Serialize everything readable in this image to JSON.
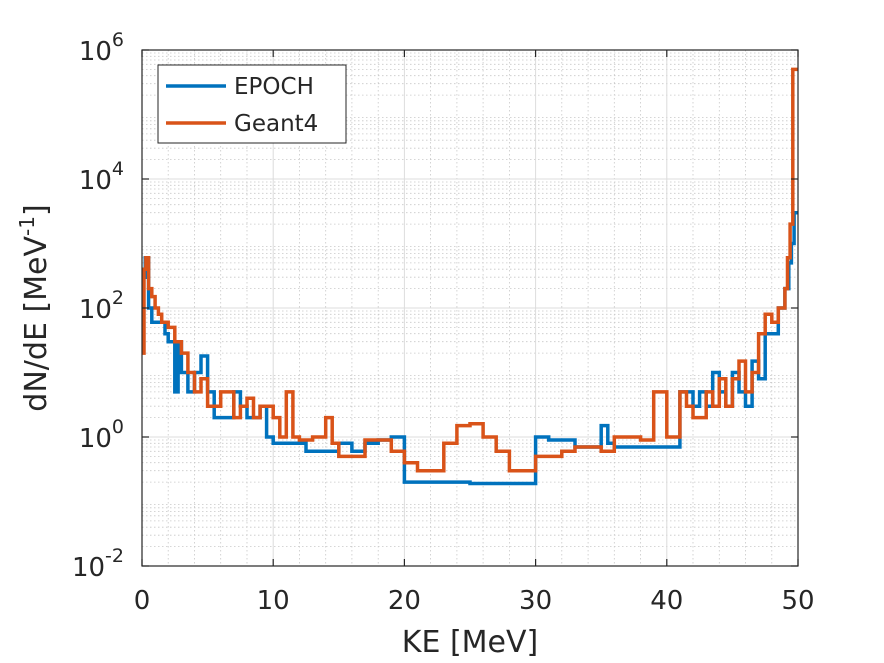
{
  "chart_data": {
    "type": "line",
    "step": true,
    "xlabel": "KE [MeV]",
    "ylabel": "dN/dE [MeV",
    "ylabel_sup": "-1",
    "ylabel_suffix": "]",
    "xlim": [
      0,
      50
    ],
    "ylim": [
      0.01,
      1000000
    ],
    "yscale": "log",
    "grid": true,
    "minor_grid": true,
    "legend_position": "top-left",
    "x_ticks": [
      {
        "value": 0,
        "label": "0"
      },
      {
        "value": 10,
        "label": "10"
      },
      {
        "value": 20,
        "label": "20"
      },
      {
        "value": 30,
        "label": "30"
      },
      {
        "value": 40,
        "label": "40"
      },
      {
        "value": 50,
        "label": "50"
      }
    ],
    "y_ticks": [
      {
        "value": 0.01,
        "base": "10",
        "exp": "-2"
      },
      {
        "value": 1,
        "base": "10",
        "exp": "0"
      },
      {
        "value": 100,
        "base": "10",
        "exp": "2"
      },
      {
        "value": 10000,
        "base": "10",
        "exp": "4"
      },
      {
        "value": 1000000,
        "base": "10",
        "exp": "6"
      }
    ],
    "series": [
      {
        "name": "EPOCH",
        "color": "#0072BD",
        "points": [
          [
            0,
            300
          ],
          [
            0.25,
            600
          ],
          [
            0.5,
            100
          ],
          [
            0.75,
            60
          ],
          [
            1.25,
            60
          ],
          [
            1.75,
            40
          ],
          [
            2.0,
            30
          ],
          [
            2.5,
            5
          ],
          [
            2.75,
            30
          ],
          [
            3.0,
            10
          ],
          [
            3.5,
            5
          ],
          [
            4.0,
            10
          ],
          [
            4.5,
            18
          ],
          [
            5.0,
            5
          ],
          [
            5.5,
            2
          ],
          [
            6.5,
            2
          ],
          [
            7.0,
            5
          ],
          [
            7.5,
            3
          ],
          [
            8.0,
            2
          ],
          [
            9.0,
            3
          ],
          [
            9.5,
            1.0
          ],
          [
            10,
            0.8
          ],
          [
            12.5,
            0.6
          ],
          [
            15,
            0.8
          ],
          [
            16,
            0.6
          ],
          [
            17,
            0.8
          ],
          [
            18,
            0.9
          ],
          [
            19,
            1.0
          ],
          [
            20,
            0.2
          ],
          [
            25,
            0.19
          ],
          [
            30,
            1.0
          ],
          [
            31,
            0.9
          ],
          [
            33,
            0.7
          ],
          [
            35,
            1.5
          ],
          [
            35.5,
            0.8
          ],
          [
            36,
            0.7
          ],
          [
            41,
            5
          ],
          [
            42,
            3
          ],
          [
            42.5,
            5
          ],
          [
            43,
            3
          ],
          [
            43.5,
            10
          ],
          [
            44,
            5
          ],
          [
            44.5,
            3
          ],
          [
            45,
            10
          ],
          [
            45.5,
            5
          ],
          [
            46,
            3
          ],
          [
            46.5,
            15
          ],
          [
            47,
            8
          ],
          [
            47.5,
            40
          ],
          [
            48,
            40
          ],
          [
            48.5,
            100
          ],
          [
            49,
            200
          ],
          [
            49.3,
            500
          ],
          [
            49.5,
            1000
          ],
          [
            49.7,
            3000
          ],
          [
            50,
            3000
          ]
        ]
      },
      {
        "name": "Geant4",
        "color": "#D95319",
        "points": [
          [
            0,
            20
          ],
          [
            0.15,
            400
          ],
          [
            0.3,
            600
          ],
          [
            0.5,
            200
          ],
          [
            0.75,
            150
          ],
          [
            1.0,
            100
          ],
          [
            1.25,
            80
          ],
          [
            1.5,
            60
          ],
          [
            2.0,
            50
          ],
          [
            2.5,
            30
          ],
          [
            3.0,
            20
          ],
          [
            3.5,
            10
          ],
          [
            4.0,
            5
          ],
          [
            4.5,
            8
          ],
          [
            5.0,
            3
          ],
          [
            6.0,
            5
          ],
          [
            7.0,
            2
          ],
          [
            7.5,
            3
          ],
          [
            8.0,
            4
          ],
          [
            8.5,
            2
          ],
          [
            9.0,
            3
          ],
          [
            10,
            2
          ],
          [
            10.5,
            1.0
          ],
          [
            11,
            5
          ],
          [
            11.5,
            1.0
          ],
          [
            12,
            0.9
          ],
          [
            13,
            1.0
          ],
          [
            14,
            2
          ],
          [
            14.5,
            0.8
          ],
          [
            15,
            0.5
          ],
          [
            17,
            0.9
          ],
          [
            19,
            0.6
          ],
          [
            20,
            0.4
          ],
          [
            21,
            0.3
          ],
          [
            23,
            0.8
          ],
          [
            24,
            1.5
          ],
          [
            25,
            1.6
          ],
          [
            26,
            1.0
          ],
          [
            27,
            0.6
          ],
          [
            28,
            0.3
          ],
          [
            30,
            0.5
          ],
          [
            32,
            0.6
          ],
          [
            33,
            0.7
          ],
          [
            35,
            0.6
          ],
          [
            36,
            1.0
          ],
          [
            38,
            0.9
          ],
          [
            39,
            5
          ],
          [
            40,
            1.0
          ],
          [
            41,
            5
          ],
          [
            41.5,
            3
          ],
          [
            42,
            2
          ],
          [
            43,
            5
          ],
          [
            43.5,
            3
          ],
          [
            44,
            8
          ],
          [
            44.5,
            3
          ],
          [
            45,
            8
          ],
          [
            45.5,
            15
          ],
          [
            46,
            5
          ],
          [
            46.5,
            10
          ],
          [
            47,
            40
          ],
          [
            47.5,
            80
          ],
          [
            48,
            60
          ],
          [
            48.5,
            100
          ],
          [
            49,
            200
          ],
          [
            49.2,
            600
          ],
          [
            49.4,
            2000
          ],
          [
            49.6,
            500000
          ],
          [
            50,
            500000
          ]
        ]
      }
    ]
  }
}
